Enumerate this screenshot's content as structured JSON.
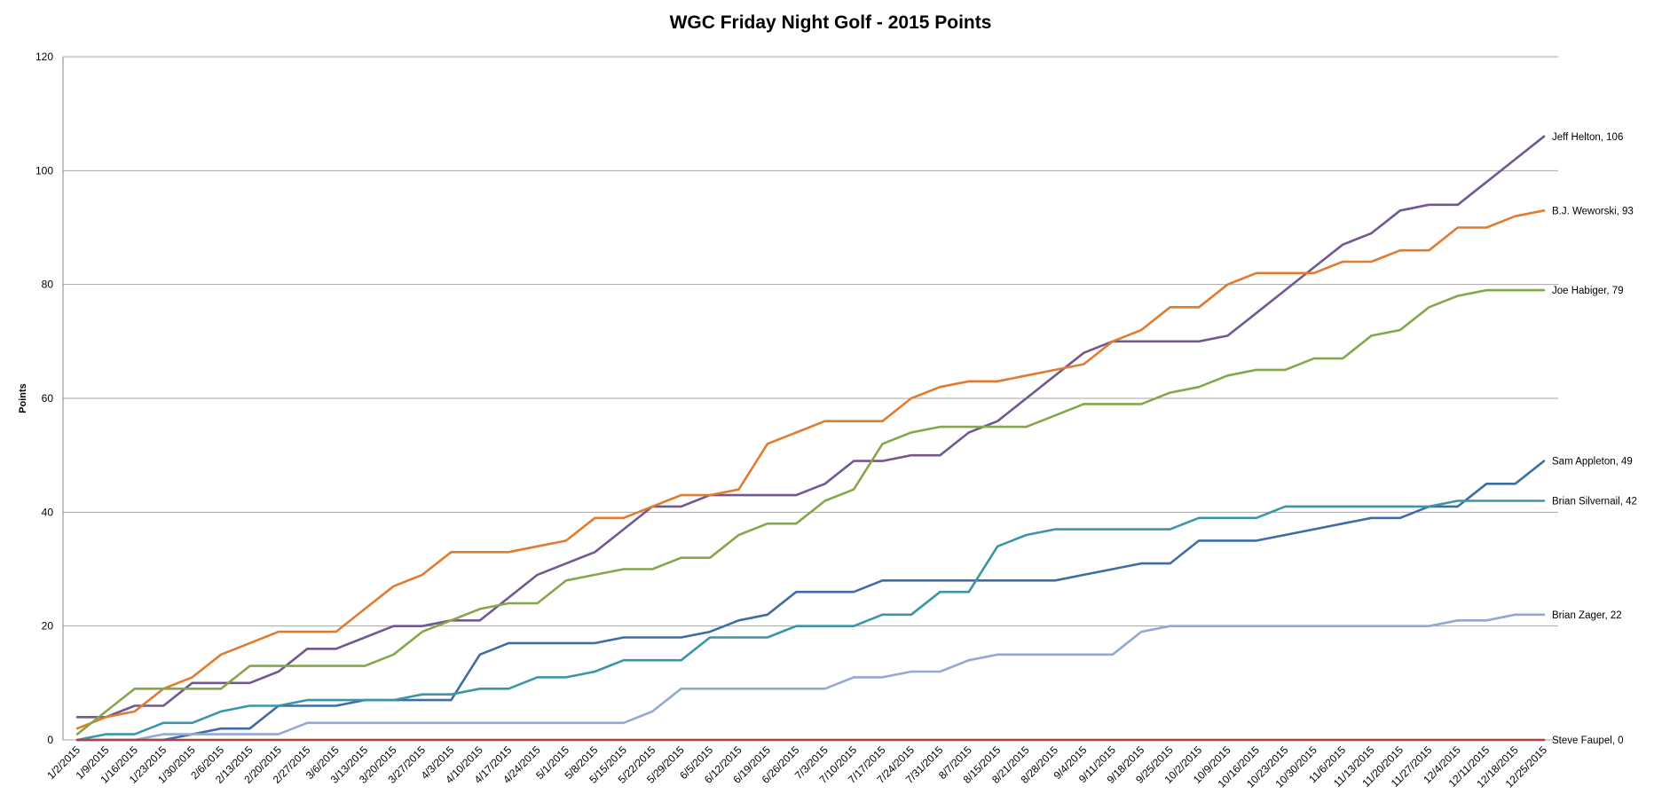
{
  "chart_data": {
    "type": "line",
    "title": "WGC Friday Night Golf - 2015 Points",
    "ylabel": "Points",
    "xlabel": "",
    "ylim": [
      0,
      120
    ],
    "yticks": [
      0,
      20,
      40,
      60,
      80,
      100,
      120
    ],
    "grid": true,
    "legend": "none (labels at line ends)",
    "x": [
      "1/2/2015",
      "1/9/2015",
      "1/16/2015",
      "1/23/2015",
      "1/30/2015",
      "2/6/2015",
      "2/13/2015",
      "2/20/2015",
      "2/27/2015",
      "3/6/2015",
      "3/13/2015",
      "3/20/2015",
      "3/27/2015",
      "4/3/2015",
      "4/10/2015",
      "4/17/2015",
      "4/24/2015",
      "5/1/2015",
      "5/8/2015",
      "5/15/2015",
      "5/22/2015",
      "5/29/2015",
      "6/5/2015",
      "6/12/2015",
      "6/19/2015",
      "6/26/2015",
      "7/3/2015",
      "7/10/2015",
      "7/17/2015",
      "7/24/2015",
      "7/31/2015",
      "8/7/2015",
      "8/15/2015",
      "8/21/2015",
      "8/28/2015",
      "9/4/2015",
      "9/11/2015",
      "9/18/2015",
      "9/25/2015",
      "10/2/2015",
      "10/9/2015",
      "10/16/2015",
      "10/23/2015",
      "10/30/2015",
      "11/6/2015",
      "11/13/2015",
      "11/20/2015",
      "11/27/2015",
      "12/4/2015",
      "12/11/2015",
      "12/18/2015",
      "12/25/2015"
    ],
    "series": [
      {
        "name": "Jeff Helton",
        "end_label": "Jeff Helton, 106",
        "color": "#71588f",
        "values": [
          4,
          4,
          6,
          6,
          10,
          10,
          10,
          12,
          16,
          16,
          18,
          20,
          20,
          21,
          21,
          25,
          29,
          31,
          33,
          37,
          41,
          41,
          43,
          43,
          43,
          43,
          45,
          49,
          49,
          50,
          50,
          54,
          56,
          60,
          64,
          68,
          70,
          70,
          70,
          70,
          71,
          75,
          79,
          83,
          87,
          89,
          93,
          94,
          94,
          98,
          102,
          106
        ]
      },
      {
        "name": "B.J. Weworski",
        "end_label": "B.J. Weworski, 93",
        "color": "#e07b2f",
        "values": [
          2,
          4,
          5,
          9,
          11,
          15,
          17,
          19,
          19,
          19,
          23,
          27,
          29,
          33,
          33,
          33,
          34,
          35,
          39,
          39,
          41,
          43,
          43,
          44,
          52,
          54,
          56,
          56,
          56,
          60,
          62,
          63,
          63,
          64,
          65,
          66,
          70,
          72,
          76,
          76,
          80,
          82,
          82,
          82,
          84,
          84,
          86,
          86,
          90,
          90,
          92,
          93
        ]
      },
      {
        "name": "Joe Habiger",
        "end_label": "Joe Habiger, 79",
        "color": "#86a64a",
        "values": [
          1,
          5,
          9,
          9,
          9,
          9,
          13,
          13,
          13,
          13,
          13,
          15,
          19,
          21,
          23,
          24,
          24,
          28,
          29,
          30,
          30,
          32,
          32,
          36,
          38,
          38,
          42,
          44,
          52,
          54,
          55,
          55,
          55,
          55,
          57,
          59,
          59,
          59,
          61,
          62,
          64,
          65,
          65,
          67,
          67,
          71,
          72,
          76,
          78,
          79,
          79,
          79
        ]
      },
      {
        "name": "Sam Appleton",
        "end_label": "Sam Appleton, 49",
        "color": "#3f6da3",
        "values": [
          0,
          0,
          0,
          0,
          1,
          2,
          2,
          6,
          6,
          6,
          7,
          7,
          7,
          7,
          15,
          17,
          17,
          17,
          17,
          18,
          18,
          18,
          19,
          21,
          22,
          26,
          26,
          26,
          28,
          28,
          28,
          28,
          28,
          28,
          28,
          29,
          30,
          31,
          31,
          35,
          35,
          35,
          36,
          37,
          38,
          39,
          39,
          41,
          41,
          45,
          45,
          49
        ]
      },
      {
        "name": "Brian Silvernail",
        "end_label": "Brian Silvernail, 42",
        "color": "#3a95a9",
        "values": [
          0,
          1,
          1,
          3,
          3,
          5,
          6,
          6,
          7,
          7,
          7,
          7,
          8,
          8,
          9,
          9,
          11,
          11,
          12,
          14,
          14,
          14,
          18,
          18,
          18,
          20,
          20,
          20,
          22,
          22,
          26,
          26,
          34,
          36,
          37,
          37,
          37,
          37,
          37,
          39,
          39,
          39,
          41,
          41,
          41,
          41,
          41,
          41,
          42,
          42,
          42,
          42
        ]
      },
      {
        "name": "Brian Zager",
        "end_label": "Brian Zager, 22",
        "color": "#93a9cf",
        "values": [
          0,
          0,
          0,
          1,
          1,
          1,
          1,
          1,
          3,
          3,
          3,
          3,
          3,
          3,
          3,
          3,
          3,
          3,
          3,
          3,
          5,
          9,
          9,
          9,
          9,
          9,
          9,
          11,
          11,
          12,
          12,
          14,
          15,
          15,
          15,
          15,
          15,
          19,
          20,
          20,
          20,
          20,
          20,
          20,
          20,
          20,
          20,
          20,
          21,
          21,
          22,
          22
        ]
      },
      {
        "name": "Steve Faupel",
        "end_label": "Steve Faupel, 0",
        "color": "#b33f3b",
        "values": [
          0,
          0,
          0,
          0,
          0,
          0,
          0,
          0,
          0,
          0,
          0,
          0,
          0,
          0,
          0,
          0,
          0,
          0,
          0,
          0,
          0,
          0,
          0,
          0,
          0,
          0,
          0,
          0,
          0,
          0,
          0,
          0,
          0,
          0,
          0,
          0,
          0,
          0,
          0,
          0,
          0,
          0,
          0,
          0,
          0,
          0,
          0,
          0,
          0,
          0,
          0,
          0
        ]
      }
    ]
  }
}
